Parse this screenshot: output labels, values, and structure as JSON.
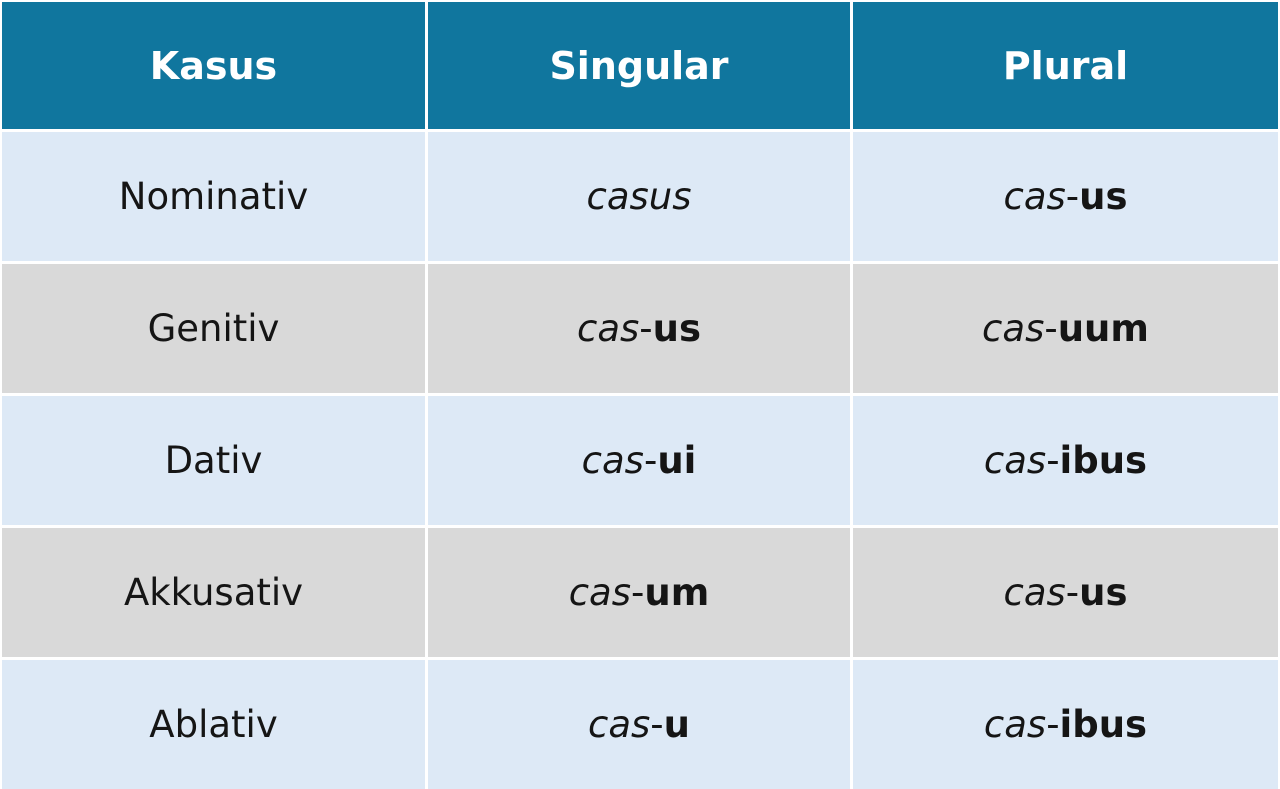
{
  "table": {
    "header": [
      "Kasus",
      "Singular",
      "Plural"
    ],
    "rows": [
      [
        "Nominativ",
        {
          "stem": "casus"
        },
        {
          "stem": "cas",
          "hyphen": "-",
          "ending": "us"
        }
      ],
      [
        "Genitiv",
        {
          "stem": "cas",
          "hyphen": "-",
          "ending": "us"
        },
        {
          "stem": "cas",
          "hyphen": "-",
          "ending": "uum"
        }
      ],
      [
        "Dativ",
        {
          "stem": "cas",
          "hyphen": "-",
          "ending": "ui"
        },
        {
          "stem": "cas",
          "hyphen": "-",
          "ending": "ibus"
        }
      ],
      [
        "Akkusativ",
        {
          "stem": "cas",
          "hyphen": "-",
          "ending": "um"
        },
        {
          "stem": "cas",
          "hyphen": "-",
          "ending": "us"
        }
      ],
      [
        "Ablativ",
        {
          "stem": "cas",
          "hyphen": "-",
          "ending": "u"
        },
        {
          "stem": "cas",
          "hyphen": "-",
          "ending": "ibus"
        }
      ]
    ]
  }
}
